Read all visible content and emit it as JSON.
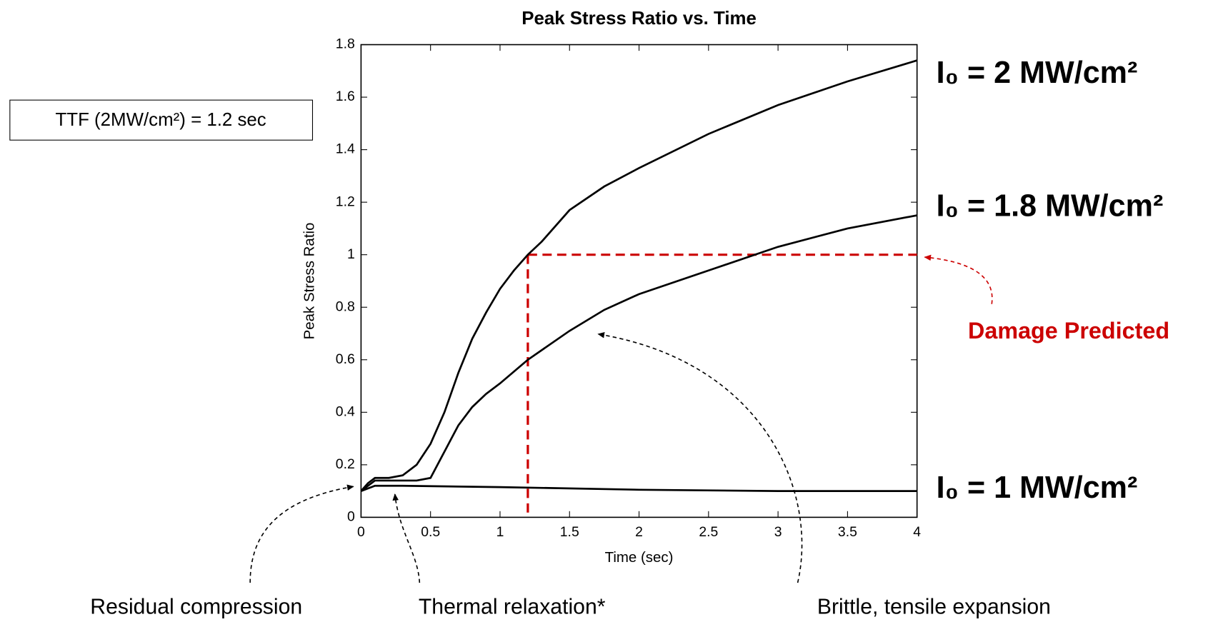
{
  "chart_data": {
    "type": "line",
    "title": "Peak Stress Ratio vs. Time",
    "xlabel": "Time (sec)",
    "ylabel": "Peak Stress Ratio",
    "xlim": [
      0,
      4
    ],
    "ylim": [
      0,
      1.8
    ],
    "xticks": [
      0,
      0.5,
      1,
      1.5,
      2,
      2.5,
      3,
      3.5,
      4
    ],
    "yticks": [
      0,
      0.2,
      0.4,
      0.6,
      0.8,
      1,
      1.2,
      1.4,
      1.6,
      1.8
    ],
    "grid": false,
    "series": [
      {
        "name": "I₀ = 2 MW/cm²",
        "color": "#000000",
        "x": [
          0,
          0.05,
          0.1,
          0.2,
          0.3,
          0.4,
          0.5,
          0.6,
          0.7,
          0.8,
          0.9,
          1.0,
          1.1,
          1.2,
          1.3,
          1.5,
          1.75,
          2.0,
          2.5,
          3.0,
          3.5,
          4.0
        ],
        "values": [
          0.1,
          0.13,
          0.15,
          0.15,
          0.16,
          0.2,
          0.28,
          0.4,
          0.55,
          0.68,
          0.78,
          0.87,
          0.94,
          1.0,
          1.05,
          1.17,
          1.26,
          1.33,
          1.46,
          1.57,
          1.66,
          1.74
        ]
      },
      {
        "name": "I₀ = 1.8 MW/cm²",
        "color": "#000000",
        "x": [
          0,
          0.1,
          0.2,
          0.3,
          0.4,
          0.5,
          0.6,
          0.7,
          0.8,
          0.9,
          1.0,
          1.2,
          1.5,
          1.75,
          2.0,
          2.5,
          3.0,
          3.5,
          4.0
        ],
        "values": [
          0.1,
          0.14,
          0.14,
          0.14,
          0.14,
          0.15,
          0.25,
          0.35,
          0.42,
          0.47,
          0.51,
          0.6,
          0.71,
          0.79,
          0.85,
          0.94,
          1.03,
          1.1,
          1.15
        ]
      },
      {
        "name": "I₀ = 1 MW/cm²",
        "color": "#000000",
        "x": [
          0,
          0.1,
          0.3,
          1,
          2,
          3,
          4
        ],
        "values": [
          0.1,
          0.12,
          0.12,
          0.115,
          0.105,
          0.1,
          0.1
        ]
      }
    ],
    "threshold": {
      "value": 1,
      "x": 1.2,
      "color": "#cc0000"
    },
    "annotations": [
      "Damage Predicted",
      "Residual compression",
      "Thermal relaxation*",
      "Brittle, tensile expansion"
    ],
    "note_box": "TTF (2MW/cm²) = 1.2 sec"
  }
}
